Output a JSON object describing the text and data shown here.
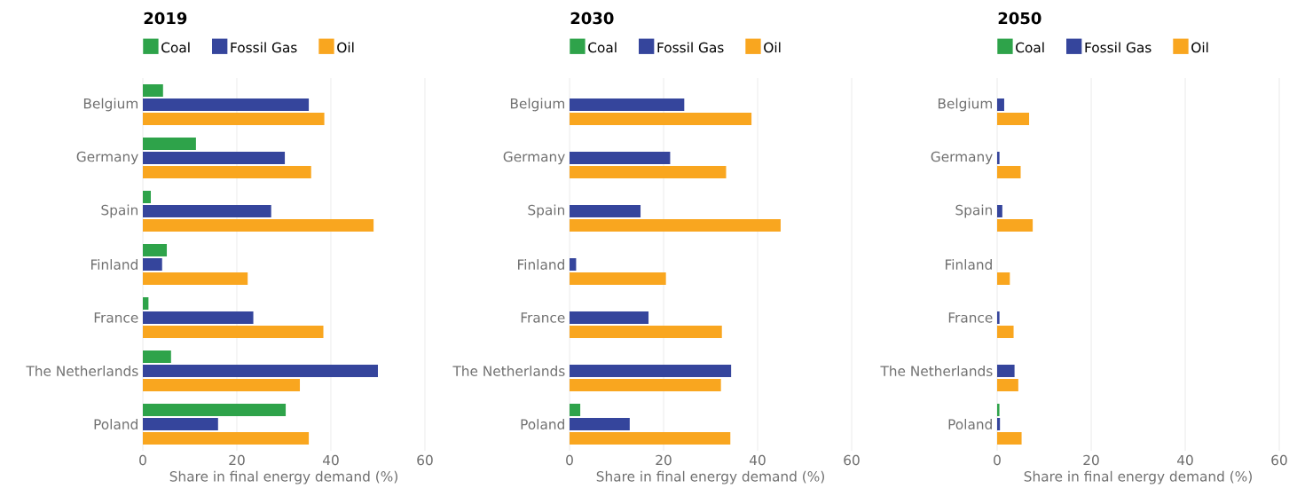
{
  "chart_data": [
    {
      "type": "bar",
      "orientation": "horizontal",
      "title": "2019",
      "xlabel": "Share in final energy demand (%)",
      "categories": [
        "Belgium",
        "Germany",
        "Spain",
        "Finland",
        "France",
        "The Netherlands",
        "Poland"
      ],
      "series": [
        {
          "name": "Coal",
          "color": "#2ea34a",
          "values": [
            4.3,
            11.3,
            1.7,
            5.1,
            1.2,
            6.0,
            30.4
          ]
        },
        {
          "name": "Fossil Gas",
          "color": "#35459c",
          "values": [
            35.3,
            30.2,
            27.3,
            4.1,
            23.5,
            50.0,
            16.0
          ]
        },
        {
          "name": "Oil",
          "color": "#f9a61f",
          "values": [
            38.6,
            35.8,
            49.1,
            22.3,
            38.4,
            33.4,
            35.3
          ]
        }
      ],
      "xlim": [
        0,
        60
      ],
      "xticks": [
        0,
        20,
        40,
        60
      ],
      "grid": "x",
      "legend": "top"
    },
    {
      "type": "bar",
      "orientation": "horizontal",
      "title": "2030",
      "xlabel": "Share in final energy demand (%)",
      "categories": [
        "Belgium",
        "Germany",
        "Spain",
        "Finland",
        "France",
        "The Netherlands",
        "Poland"
      ],
      "series": [
        {
          "name": "Coal",
          "color": "#2ea34a",
          "values": [
            0,
            0,
            0,
            0,
            0,
            0,
            2.3
          ]
        },
        {
          "name": "Fossil Gas",
          "color": "#35459c",
          "values": [
            24.4,
            21.4,
            15.1,
            1.4,
            16.8,
            34.4,
            12.8
          ]
        },
        {
          "name": "Oil",
          "color": "#f9a61f",
          "values": [
            38.7,
            33.3,
            44.9,
            20.5,
            32.4,
            32.2,
            34.2
          ]
        }
      ],
      "xlim": [
        0,
        60
      ],
      "xticks": [
        0,
        20,
        40,
        60
      ],
      "grid": "x",
      "legend": "top"
    },
    {
      "type": "bar",
      "orientation": "horizontal",
      "title": "2050",
      "xlabel": "Share in final energy demand (%)",
      "categories": [
        "Belgium",
        "Germany",
        "Spain",
        "Finland",
        "France",
        "The Netherlands",
        "Poland"
      ],
      "series": [
        {
          "name": "Coal",
          "color": "#2ea34a",
          "values": [
            0,
            0,
            0,
            0,
            0,
            0,
            0.5
          ]
        },
        {
          "name": "Fossil Gas",
          "color": "#35459c",
          "values": [
            1.5,
            0.5,
            1.1,
            0,
            0.5,
            3.7,
            0.6
          ]
        },
        {
          "name": "Oil",
          "color": "#f9a61f",
          "values": [
            6.8,
            5.0,
            7.6,
            2.7,
            3.5,
            4.5,
            5.2
          ]
        }
      ],
      "xlim": [
        0,
        60
      ],
      "xticks": [
        0,
        20,
        40,
        60
      ],
      "grid": "x",
      "legend": "top"
    }
  ]
}
